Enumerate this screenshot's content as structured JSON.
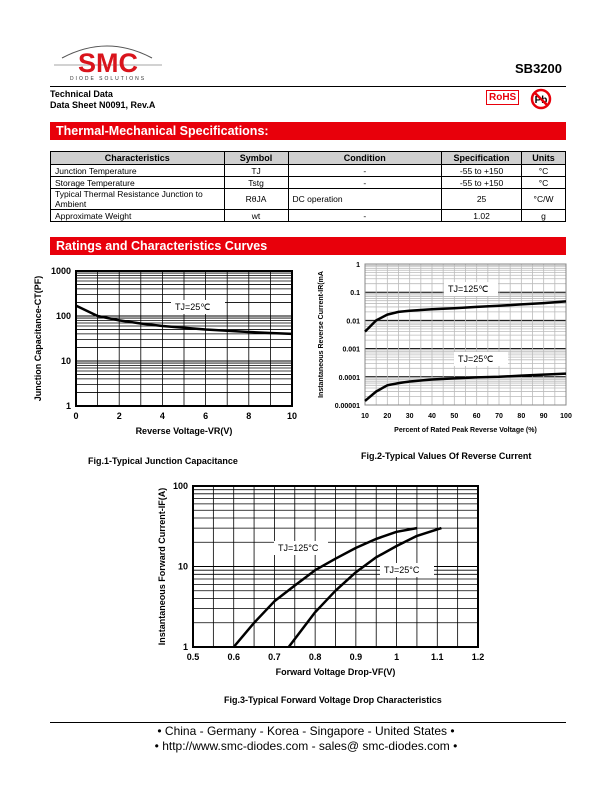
{
  "header": {
    "logo_text": "SMC",
    "logo_subtext": "DIODE SOLUTIONS",
    "part_number": "SB3200",
    "doc_type": "Technical Data",
    "doc_ref": "Data Sheet N0091, Rev.A",
    "rohs_badge": "RoHS",
    "pb_badge": "Pb"
  },
  "colors": {
    "accent": "#e8000b"
  },
  "thermal": {
    "title": "Thermal-Mechanical Specifications:",
    "columns": [
      "Characteristics",
      "Symbol",
      "Condition",
      "Specification",
      "Units"
    ],
    "rows": [
      {
        "characteristic": "Junction Temperature",
        "symbol": "TJ",
        "condition": "-",
        "spec": "-55 to +150",
        "units": "°C"
      },
      {
        "characteristic": "Storage Temperature",
        "symbol": "Tstg",
        "condition": "-",
        "spec": "-55 to +150",
        "units": "°C"
      },
      {
        "characteristic": "Typical Thermal Resistance Junction to Ambient",
        "symbol": "RθJA",
        "condition": "DC operation",
        "spec": "25",
        "units": "°C/W"
      },
      {
        "characteristic": "Approximate Weight",
        "symbol": "wt",
        "condition": "-",
        "spec": "1.02",
        "units": "g"
      }
    ]
  },
  "curves": {
    "title": "Ratings and Characteristics Curves"
  },
  "chart_data": [
    {
      "type": "line",
      "title": "Fig.1-Typical Junction Capacitance",
      "xlabel": "Reverse Voltage-VR(V)",
      "ylabel": "Junction Capacitance-CT(PF)",
      "xlim": [
        0,
        10
      ],
      "ylim": [
        1,
        1000
      ],
      "yscale": "log",
      "grid": true,
      "xticks": [
        "0",
        "2",
        "4",
        "6",
        "8",
        "10"
      ],
      "yticks": [
        "1",
        "10",
        "100",
        "1000"
      ],
      "series": [
        {
          "name": "TJ=25℃",
          "x": [
            0,
            1,
            2,
            3,
            4,
            5,
            6,
            7,
            8,
            9,
            10
          ],
          "y": [
            170,
            100,
            80,
            68,
            60,
            55,
            50,
            47,
            44,
            42,
            40
          ]
        }
      ]
    },
    {
      "type": "line",
      "title": "Fig.2-Typical Values Of Reverse Current",
      "xlabel": "Percent of Rated Peak Reverse Voltage (%)",
      "ylabel": "Instantaneous Reverse Current-IR(mA",
      "xlim": [
        10,
        100
      ],
      "ylim": [
        1e-05,
        1
      ],
      "yscale": "log",
      "grid": true,
      "xticks": [
        "10",
        "20",
        "30",
        "40",
        "50",
        "60",
        "70",
        "80",
        "90",
        "100"
      ],
      "yticks": [
        "0.00001",
        "0.0001",
        "0.001",
        "0.01",
        "0.1",
        "1"
      ],
      "series": [
        {
          "name": "TJ=125℃",
          "x": [
            10,
            15,
            20,
            25,
            30,
            40,
            50,
            60,
            70,
            80,
            90,
            100
          ],
          "y": [
            0.004,
            0.01,
            0.016,
            0.02,
            0.022,
            0.025,
            0.027,
            0.03,
            0.033,
            0.037,
            0.041,
            0.047
          ]
        },
        {
          "name": "TJ=25℃",
          "x": [
            10,
            15,
            20,
            25,
            30,
            40,
            50,
            60,
            70,
            80,
            90,
            100
          ],
          "y": [
            1.4e-05,
            3e-05,
            5e-05,
            6e-05,
            6.8e-05,
            8e-05,
            8.8e-05,
            9.5e-05,
            0.0001,
            0.00011,
            0.00012,
            0.00013
          ]
        }
      ]
    },
    {
      "type": "line",
      "title": "Fig.3-Typical Forward Voltage Drop Characteristics",
      "xlabel": "Forward Voltage Drop-VF(V)",
      "ylabel": "Instantaneous Forward Current-IF(A)",
      "xlim": [
        0.5,
        1.2
      ],
      "ylim": [
        1,
        100
      ],
      "yscale": "log",
      "grid": true,
      "xticks": [
        "0.5",
        "0.6",
        "0.7",
        "0.8",
        "0.9",
        "1",
        "1.1",
        "1.2"
      ],
      "yticks": [
        "1",
        "10",
        "100"
      ],
      "series": [
        {
          "name": "TJ=125°C",
          "x": [
            0.6,
            0.65,
            0.7,
            0.75,
            0.8,
            0.85,
            0.9,
            0.95,
            1.0,
            1.05
          ],
          "y": [
            1,
            2,
            3.7,
            5.8,
            9,
            12.5,
            17,
            22,
            27,
            30
          ]
        },
        {
          "name": "TJ=25°C",
          "x": [
            0.735,
            0.8,
            0.85,
            0.9,
            0.95,
            1.0,
            1.05,
            1.11
          ],
          "y": [
            1,
            2.7,
            5,
            8.5,
            13,
            18,
            24,
            30
          ]
        }
      ]
    }
  ],
  "footer": {
    "locations": "• China  -  Germany  -  Korea  -  Singapore  -  United States •",
    "contact": "• http://www.smc-diodes.com  -  sales@ smc-diodes.com •"
  }
}
